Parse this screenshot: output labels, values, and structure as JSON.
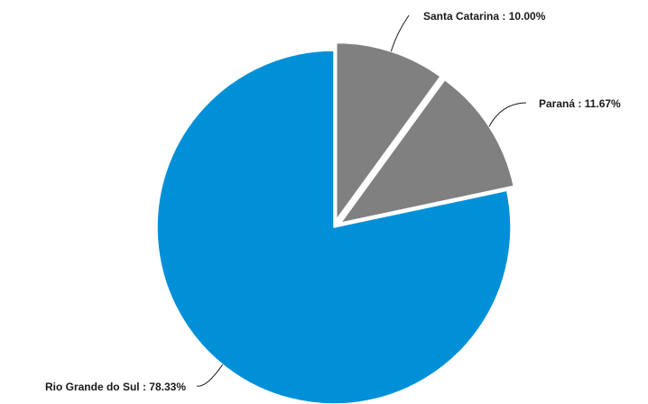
{
  "chart_data": {
    "type": "pie",
    "title": "",
    "categories": [
      "Santa Catarina",
      "Paraná",
      "Rio Grande do Sul"
    ],
    "values": [
      10.0,
      11.67,
      78.33
    ],
    "unit": "%",
    "colors": [
      "#808080",
      "#808080",
      "#0090d8"
    ],
    "exploded": [
      true,
      true,
      false
    ],
    "legend": "none",
    "data_labels": [
      "Santa Catarina : 10.00%",
      "Paraná : 11.67%",
      "Rio Grande do Sul : 78.33%"
    ]
  }
}
